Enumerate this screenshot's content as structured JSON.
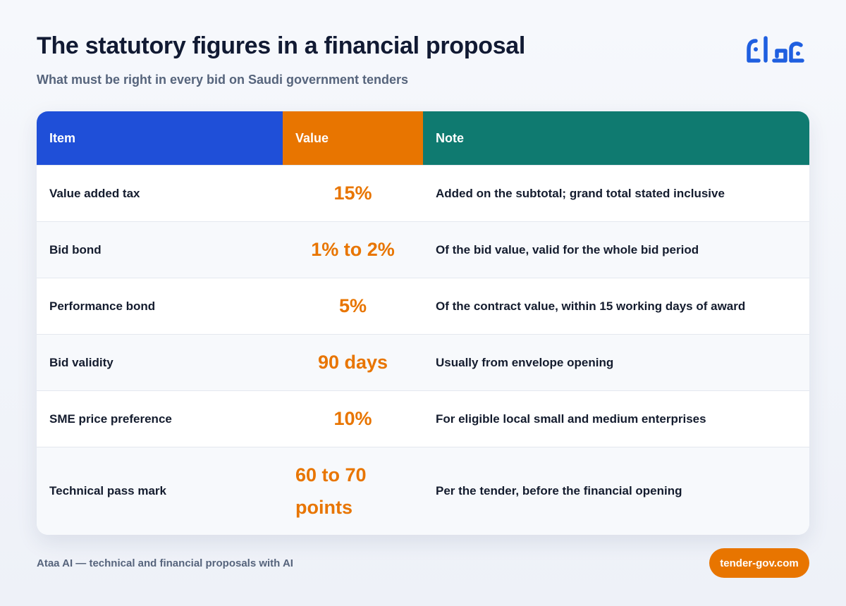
{
  "header": {
    "title": "The statutory figures in a financial proposal",
    "subtitle": "What must be right in every bid on Saudi government tenders"
  },
  "logo": {
    "icon": "ataa-logo-icon",
    "color": "#1f5fe0"
  },
  "table": {
    "columns": [
      "Item",
      "Value",
      "Note"
    ],
    "header_colors": [
      "#1f4fd8",
      "#e87500",
      "#0f7a70"
    ],
    "rows": [
      {
        "item": "Value added tax",
        "value": "15%",
        "note": "Added on the subtotal; grand total stated inclusive"
      },
      {
        "item": "Bid bond",
        "value": "1% to 2%",
        "note": "Of the bid value, valid for the whole bid period"
      },
      {
        "item": "Performance bond",
        "value": "5%",
        "note": "Of the contract value, within 15 working days of award"
      },
      {
        "item": "Bid validity",
        "value": "90 days",
        "note": "Usually from envelope opening"
      },
      {
        "item": "SME price preference",
        "value": "10%",
        "note": "For eligible local small and medium enterprises"
      },
      {
        "item": "Technical pass mark",
        "value_lines": [
          "60 to 70",
          "points"
        ],
        "note": "Per the tender, before the financial opening"
      }
    ]
  },
  "footer": {
    "text": "Ataa AI — technical and financial proposals with AI",
    "link_label": "tender-gov.com"
  }
}
